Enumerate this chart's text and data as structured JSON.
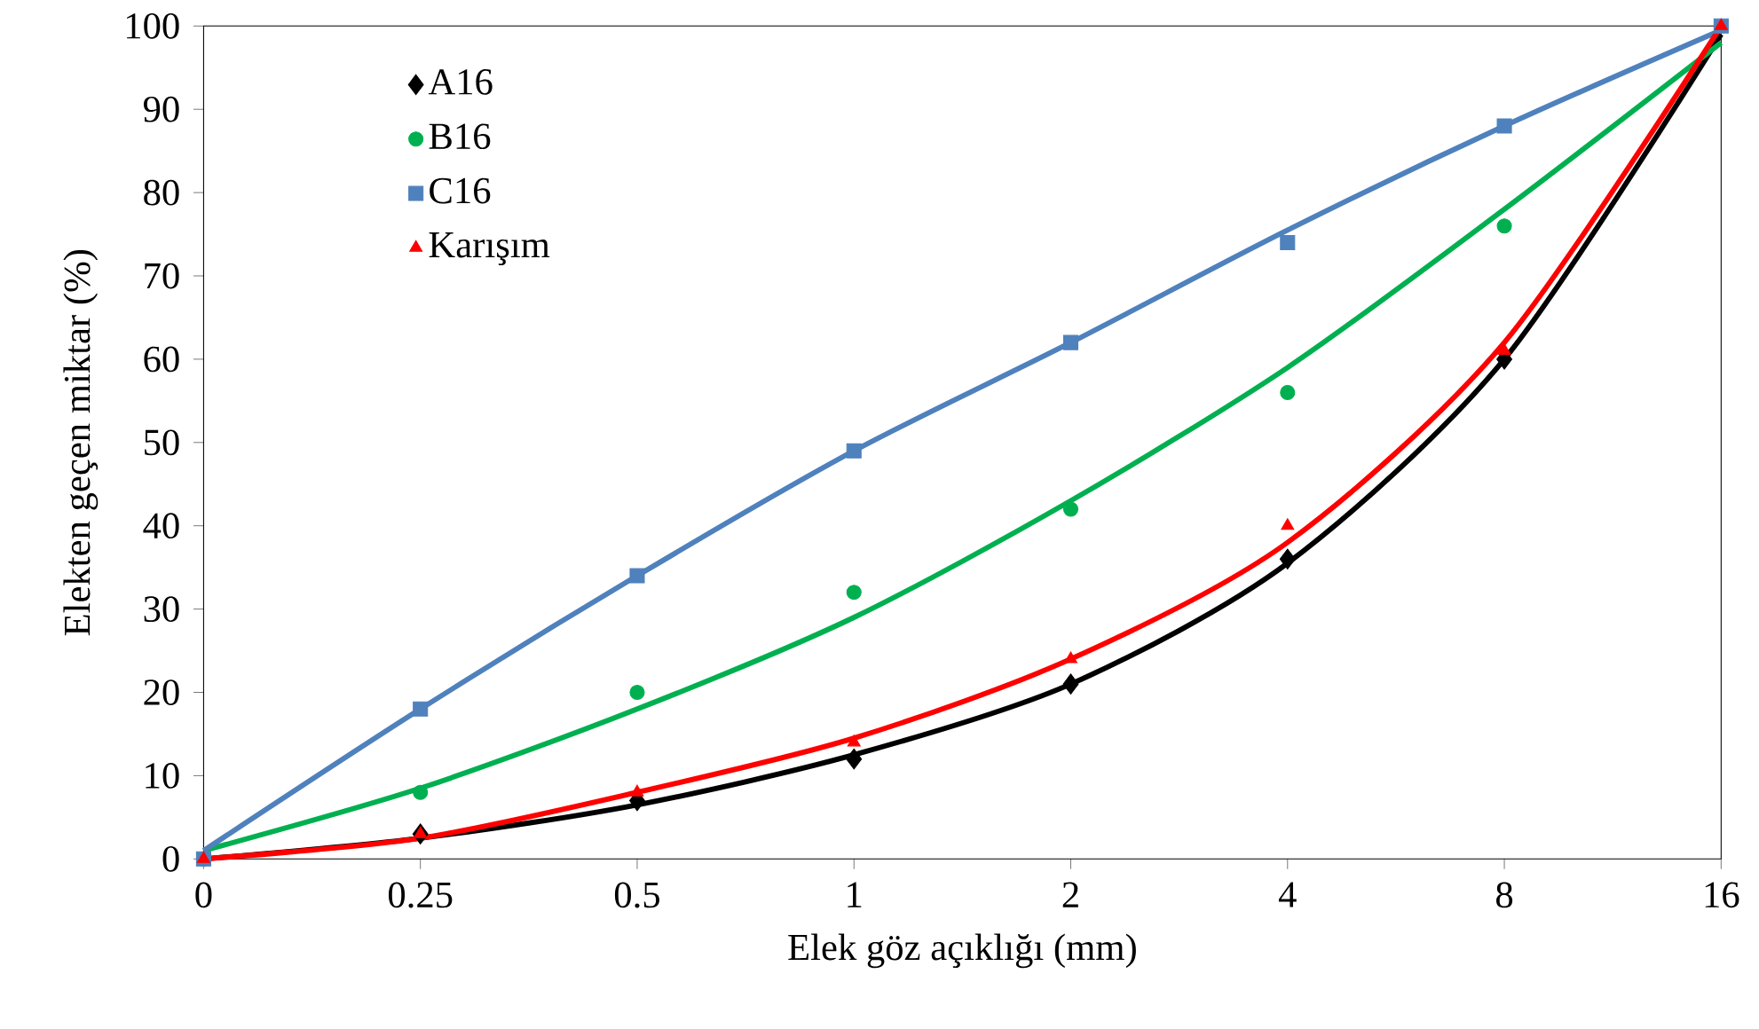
{
  "chart_data": {
    "type": "scatter",
    "xlabel": "Elek göz açıklığı (mm)",
    "ylabel": "Elekten geçen miktar (%)",
    "categories": [
      "0",
      "0.25",
      "0.5",
      "1",
      "2",
      "4",
      "8",
      "16"
    ],
    "ylim": [
      0,
      100
    ],
    "yticks": [
      0,
      10,
      20,
      30,
      40,
      50,
      60,
      70,
      80,
      90,
      100
    ],
    "grid": false,
    "legend": "top left",
    "series": [
      {
        "name": "A16",
        "marker": "diamond",
        "color": "#000000",
        "values": [
          null,
          3,
          7,
          12,
          21,
          36,
          60,
          null
        ]
      },
      {
        "name": "B16",
        "marker": "circle",
        "color": "#00b050",
        "values": [
          0,
          8,
          20,
          32,
          42,
          56,
          76,
          null
        ]
      },
      {
        "name": "C16",
        "marker": "square",
        "color": "#4f81bd",
        "values": [
          0,
          18,
          34,
          49,
          62,
          74,
          88,
          100
        ]
      },
      {
        "name": "Karışım",
        "marker": "triangle",
        "color": "#ff0000",
        "values": [
          0,
          3,
          8,
          14,
          24,
          40,
          61,
          100
        ]
      },
      {
        "type": "line",
        "marker": "none",
        "line_style": "solid",
        "color": "#000000",
        "values": [
          0,
          2.5,
          6.5,
          12.5,
          21,
          35.5,
          60,
          99
        ]
      },
      {
        "type": "line",
        "marker": "none",
        "line_style": "solid",
        "color": "#00b050",
        "values": [
          1,
          8.5,
          18,
          29,
          43,
          59,
          78,
          98
        ]
      },
      {
        "type": "line",
        "marker": "none",
        "line_style": "solid",
        "color": "#4f81bd",
        "values": [
          1,
          18,
          34,
          49,
          62,
          75.5,
          88,
          99.5
        ]
      },
      {
        "type": "line",
        "marker": "none",
        "line_style": "solid",
        "color": "#ff0000",
        "values": [
          0,
          2.5,
          8,
          14.5,
          24,
          38,
          62,
          100
        ]
      }
    ]
  }
}
